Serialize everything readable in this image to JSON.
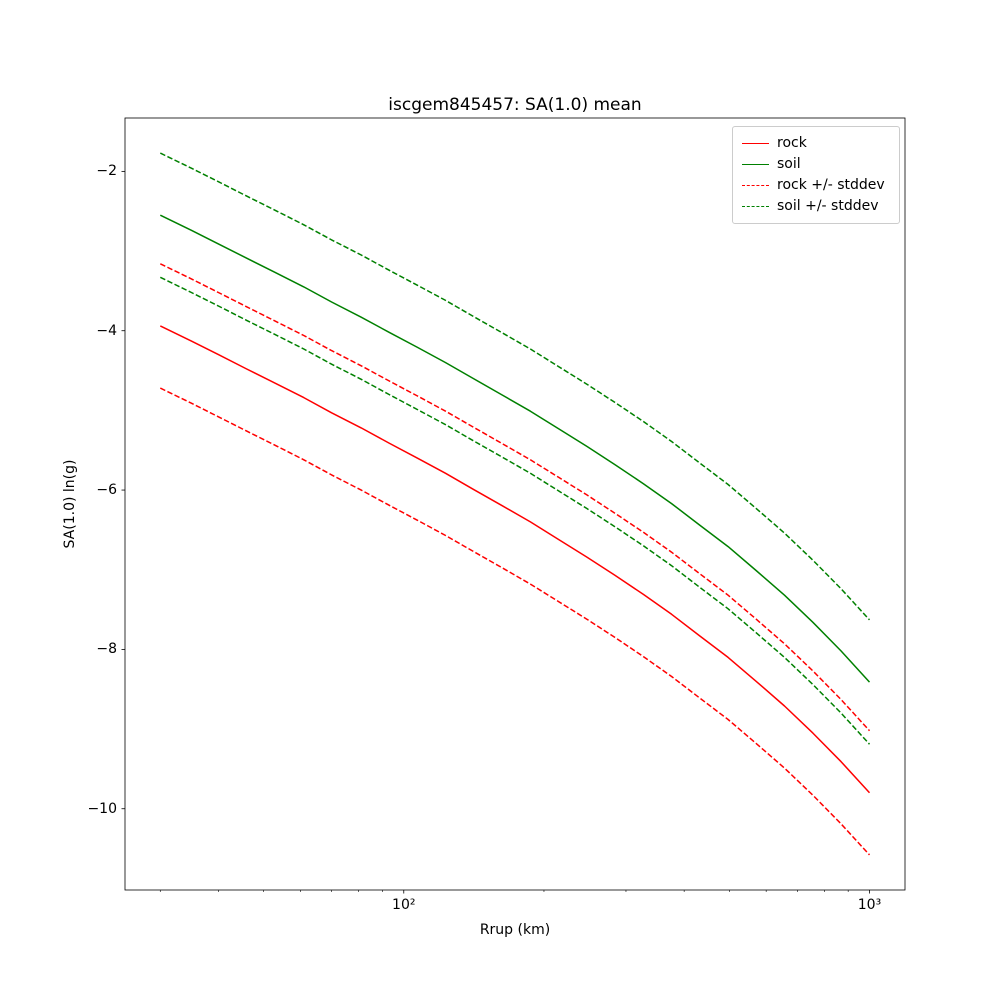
{
  "chart_data": {
    "type": "line",
    "title": "iscgem845457: SA(1.0) mean",
    "xlabel": "Rrup (km)",
    "ylabel": "SA(1.0) ln(g)",
    "x_scale": "log",
    "grid": false,
    "legend_position": "upper right",
    "xlim": [
      25.2,
      1192
    ],
    "ylim": [
      -11.02,
      -1.33
    ],
    "x_ticks": [
      {
        "value": 100,
        "label": "10²"
      },
      {
        "value": 1000,
        "label": "10³"
      }
    ],
    "x_minor_ticks": [
      30,
      40,
      50,
      60,
      70,
      80,
      90,
      200,
      300,
      400,
      500,
      600,
      700,
      800,
      900
    ],
    "y_ticks": [
      {
        "value": -2,
        "label": "−2"
      },
      {
        "value": -4,
        "label": "−4"
      },
      {
        "value": -6,
        "label": "−6"
      },
      {
        "value": -8,
        "label": "−8"
      },
      {
        "value": -10,
        "label": "−10"
      }
    ],
    "x": [
      30,
      35,
      40,
      46,
      53,
      61,
      70,
      81,
      93,
      107,
      123,
      141,
      162,
      187,
      215,
      247,
      284,
      327,
      376,
      432,
      497,
      571,
      657,
      756,
      869,
      1000
    ],
    "series": [
      {
        "name": "rock",
        "color": "#ff0000",
        "style": "solid",
        "values": [
          -3.94,
          -4.13,
          -4.3,
          -4.48,
          -4.66,
          -4.84,
          -5.03,
          -5.22,
          -5.41,
          -5.6,
          -5.79,
          -5.99,
          -6.19,
          -6.4,
          -6.62,
          -6.84,
          -7.07,
          -7.31,
          -7.56,
          -7.83,
          -8.1,
          -8.4,
          -8.71,
          -9.05,
          -9.41,
          -9.8
        ]
      },
      {
        "name": "soil",
        "color": "#008000",
        "style": "solid",
        "values": [
          -2.55,
          -2.74,
          -2.91,
          -3.09,
          -3.27,
          -3.45,
          -3.64,
          -3.83,
          -4.02,
          -4.21,
          -4.4,
          -4.6,
          -4.8,
          -5.01,
          -5.23,
          -5.45,
          -5.68,
          -5.92,
          -6.17,
          -6.44,
          -6.71,
          -7.01,
          -7.32,
          -7.66,
          -8.02,
          -8.41
        ]
      },
      {
        "name": "rock +/- stddev",
        "color": "#ff0000",
        "style": "dashed",
        "upper": [
          -3.16,
          -3.35,
          -3.52,
          -3.7,
          -3.88,
          -4.06,
          -4.25,
          -4.44,
          -4.63,
          -4.82,
          -5.01,
          -5.21,
          -5.41,
          -5.62,
          -5.84,
          -6.06,
          -6.29,
          -6.53,
          -6.78,
          -7.05,
          -7.32,
          -7.62,
          -7.93,
          -8.27,
          -8.63,
          -9.02
        ],
        "lower": [
          -4.72,
          -4.91,
          -5.08,
          -5.26,
          -5.44,
          -5.62,
          -5.81,
          -6.0,
          -6.19,
          -6.38,
          -6.57,
          -6.77,
          -6.97,
          -7.18,
          -7.4,
          -7.62,
          -7.85,
          -8.09,
          -8.34,
          -8.61,
          -8.88,
          -9.18,
          -9.49,
          -9.83,
          -10.19,
          -10.58
        ]
      },
      {
        "name": "soil +/- stddev",
        "color": "#008000",
        "style": "dashed",
        "upper": [
          -1.77,
          -1.96,
          -2.13,
          -2.31,
          -2.49,
          -2.67,
          -2.86,
          -3.05,
          -3.24,
          -3.43,
          -3.62,
          -3.82,
          -4.02,
          -4.23,
          -4.45,
          -4.67,
          -4.9,
          -5.14,
          -5.39,
          -5.66,
          -5.93,
          -6.23,
          -6.54,
          -6.88,
          -7.24,
          -7.63
        ],
        "lower": [
          -3.33,
          -3.52,
          -3.69,
          -3.87,
          -4.05,
          -4.23,
          -4.42,
          -4.61,
          -4.8,
          -4.99,
          -5.18,
          -5.38,
          -5.58,
          -5.79,
          -6.01,
          -6.23,
          -6.46,
          -6.7,
          -6.95,
          -7.22,
          -7.49,
          -7.79,
          -8.1,
          -8.44,
          -8.8,
          -9.19
        ]
      }
    ]
  }
}
